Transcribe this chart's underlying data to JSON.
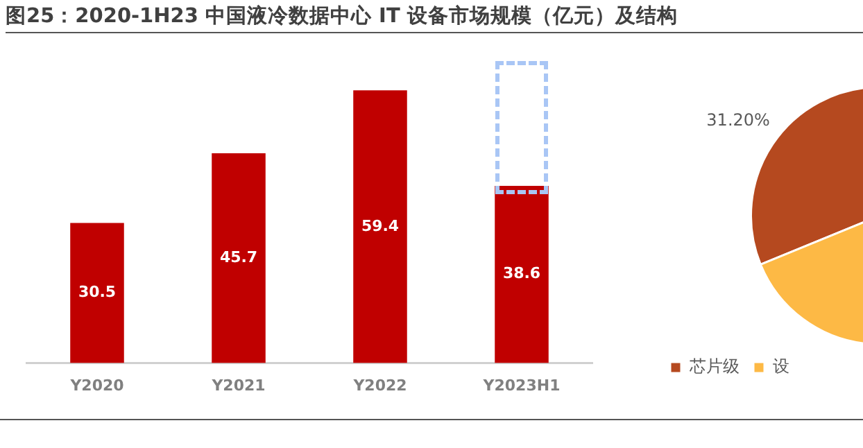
{
  "chart_data": [
    {
      "type": "bar",
      "title": "图25：2020-1H23 中国液冷数据中心 IT 设备市场规模（亿元）及结构",
      "categories": [
        "Y2020",
        "Y2021",
        "Y2022",
        "Y2023H1"
      ],
      "values": [
        30.5,
        45.7,
        59.4,
        38.6
      ],
      "color": "#c00000",
      "tick_labels": "x",
      "data_labels": true,
      "grid": false,
      "legend": false
    },
    {
      "type": "pie",
      "categories": [
        "芯片级",
        "设"
      ],
      "values": [
        31.2,
        68.8
      ],
      "colors": [
        "#b5491f",
        "#fdb945"
      ],
      "value_labels": [
        "31.20%",
        null
      ],
      "legend": "bottom"
    }
  ]
}
